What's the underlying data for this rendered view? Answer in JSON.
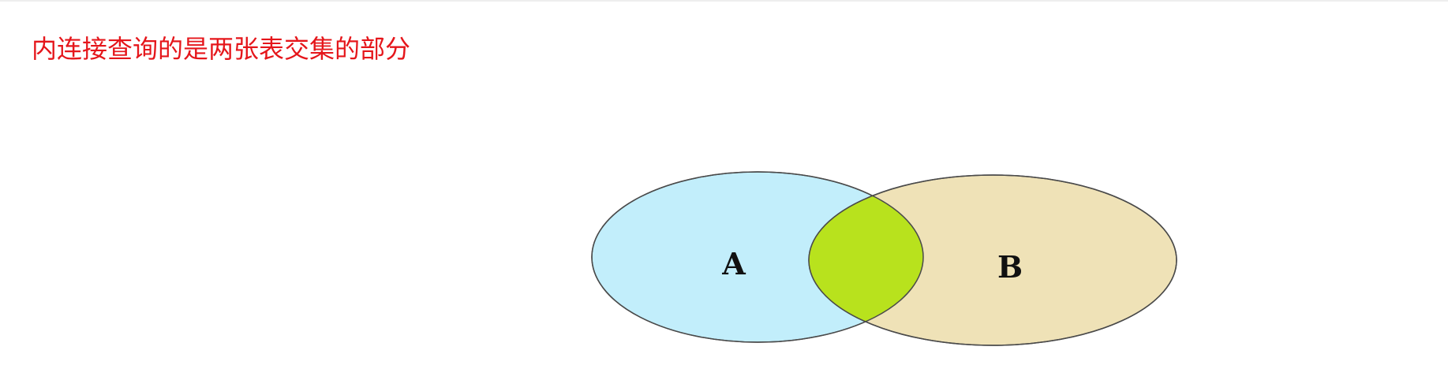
{
  "heading": "内连接查询的是两张表交集的部分",
  "venn": {
    "set_a": {
      "label": "A",
      "color": "#c2eefb"
    },
    "set_b": {
      "label": "B",
      "color": "#efe2b7"
    },
    "intersection": {
      "color": "#b8e21d"
    },
    "stroke_color": "#4a4a4a"
  },
  "colors": {
    "heading": "#e5161b",
    "background": "#ffffff"
  }
}
